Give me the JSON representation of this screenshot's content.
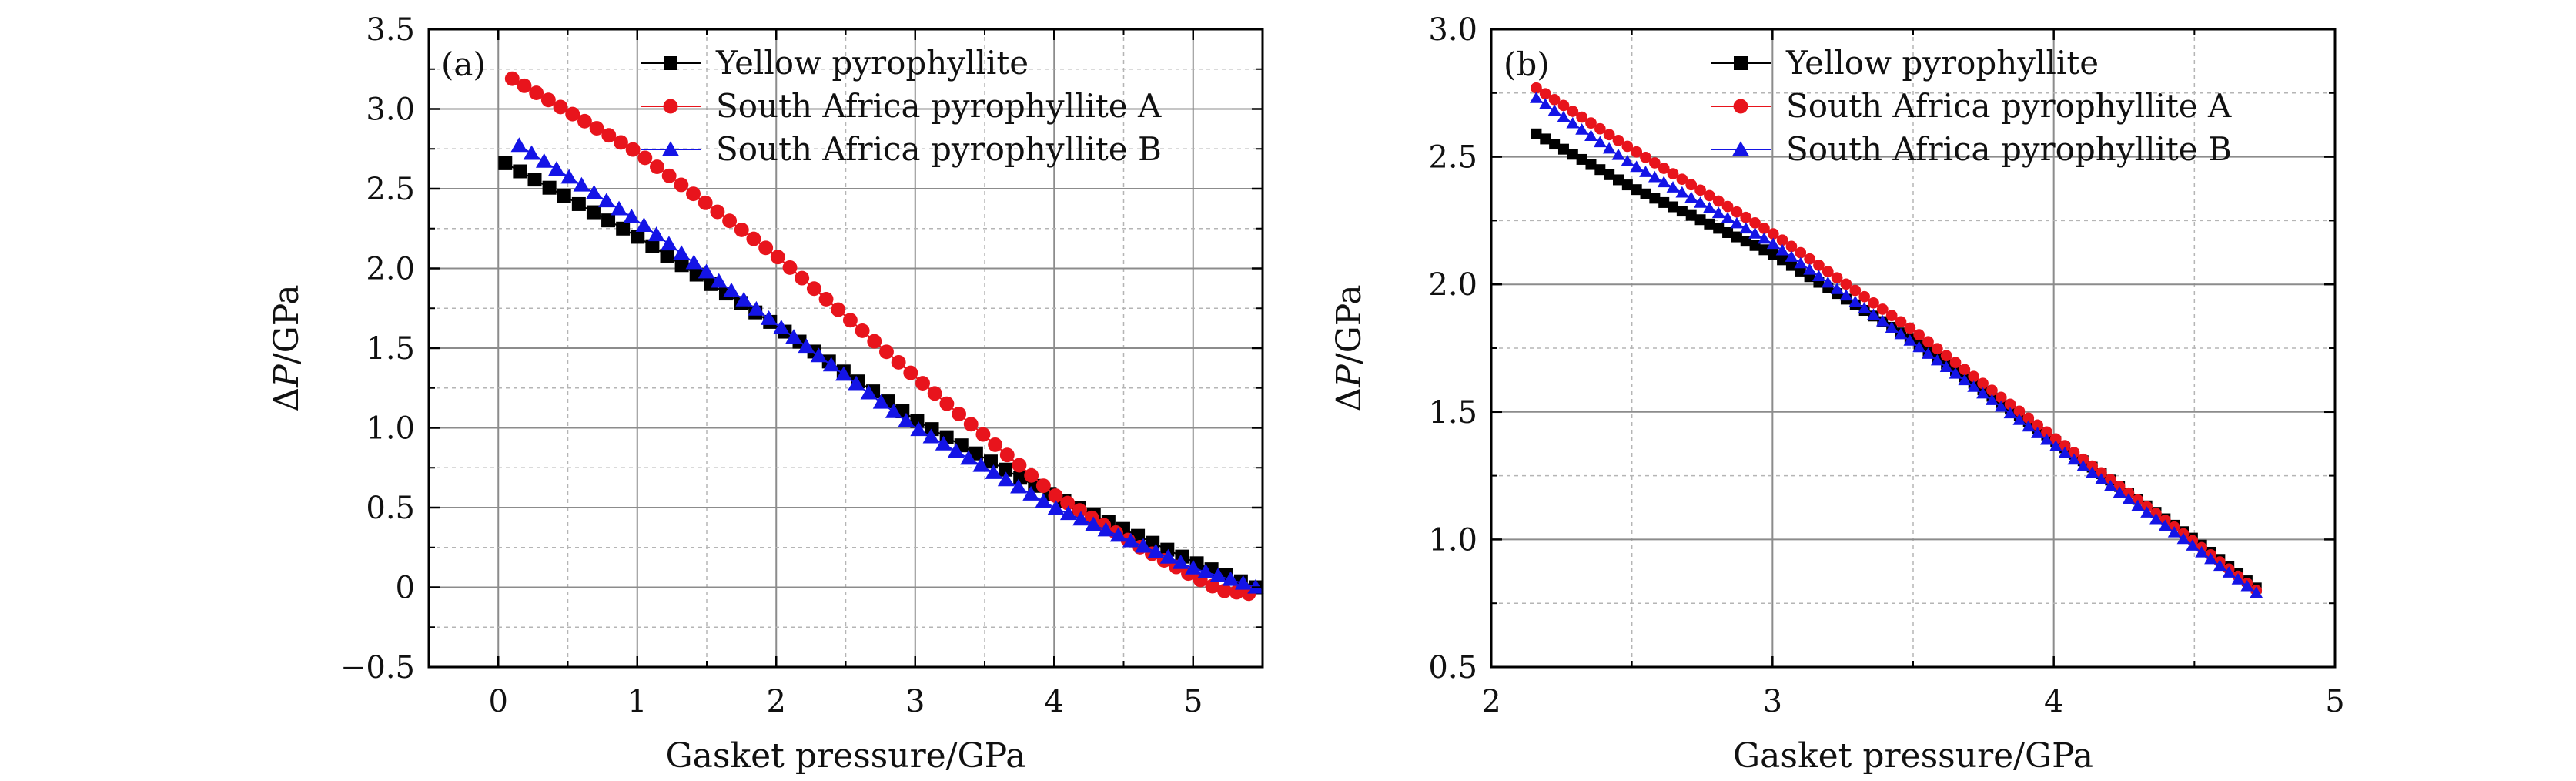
{
  "chart_data": [
    {
      "type": "line",
      "panel_label": "(a)",
      "xlabel": "Gasket pressure/GPa",
      "ylabel_main": "Δ",
      "ylabel_italic": "P",
      "ylabel_tail": "/GPa",
      "xlim": [
        -0.5,
        5.5
      ],
      "ylim": [
        -0.5,
        3.5
      ],
      "x_ticks": [
        0,
        1,
        2,
        3,
        4,
        5
      ],
      "x_tick_labels": [
        "0",
        "1",
        "2",
        "3",
        "4",
        "5"
      ],
      "y_ticks": [
        -0.5,
        0,
        0.5,
        1.0,
        1.5,
        2.0,
        2.5,
        3.0,
        3.5
      ],
      "y_tick_labels": [
        "−0.5",
        "0",
        "0.5",
        "1.0",
        "1.5",
        "2.0",
        "2.5",
        "3.0",
        "3.5"
      ],
      "grid": true,
      "legend_position": "top-right",
      "series": [
        {
          "name": "Yellow pyrophyllite",
          "color": "#000000",
          "marker": "square",
          "x_start": 0.05,
          "x_end": 5.45,
          "points": 52,
          "curve": [
            [
              0.05,
              2.66
            ],
            [
              1.0,
              2.2
            ],
            [
              2.0,
              1.64
            ],
            [
              3.0,
              1.05
            ],
            [
              4.0,
              0.57
            ],
            [
              5.0,
              0.16
            ],
            [
              5.45,
              0.0
            ]
          ]
        },
        {
          "name": "South Africa pyrophyllite A",
          "color": "#e8141c",
          "marker": "circle",
          "x_start": 0.1,
          "x_end": 5.4,
          "points": 62,
          "curve": [
            [
              0.1,
              3.19
            ],
            [
              1.0,
              2.73
            ],
            [
              2.0,
              2.08
            ],
            [
              3.0,
              1.32
            ],
            [
              4.0,
              0.58
            ],
            [
              4.6,
              0.26
            ],
            [
              5.0,
              0.07
            ],
            [
              5.2,
              -0.02
            ],
            [
              5.4,
              -0.04
            ]
          ]
        },
        {
          "name": "South Africa pyrophyllite B",
          "color": "#1414e6",
          "marker": "triangle",
          "x_start": 0.15,
          "x_end": 5.45,
          "points": 60,
          "curve": [
            [
              0.15,
              2.77
            ],
            [
              1.0,
              2.3
            ],
            [
              2.0,
              1.65
            ],
            [
              3.0,
              1.0
            ],
            [
              4.0,
              0.5
            ],
            [
              5.0,
              0.12
            ],
            [
              5.45,
              0.0
            ]
          ]
        }
      ]
    },
    {
      "type": "line",
      "panel_label": "(b)",
      "xlabel": "Gasket pressure/GPa",
      "ylabel_main": "Δ",
      "ylabel_italic": "P",
      "ylabel_tail": "/GPa",
      "xlim": [
        2.0,
        5.0
      ],
      "ylim": [
        0.5,
        3.0
      ],
      "x_ticks": [
        2,
        3,
        4,
        5
      ],
      "x_tick_labels": [
        "2",
        "3",
        "4",
        "5"
      ],
      "y_ticks": [
        0.5,
        1.0,
        1.5,
        2.0,
        2.5,
        3.0
      ],
      "y_tick_labels": [
        "0.5",
        "1.0",
        "1.5",
        "2.0",
        "2.5",
        "3.0"
      ],
      "grid": true,
      "legend_position": "top-right",
      "series": [
        {
          "name": "Yellow pyrophyllite",
          "color": "#000000",
          "marker": "square",
          "x_start": 2.16,
          "x_end": 4.72,
          "points": 80,
          "curve": [
            [
              2.16,
              2.59
            ],
            [
              2.5,
              2.38
            ],
            [
              3.0,
              2.12
            ],
            [
              3.5,
              1.78
            ],
            [
              4.0,
              1.39
            ],
            [
              4.5,
              1.0
            ],
            [
              4.72,
              0.81
            ]
          ]
        },
        {
          "name": "South Africa pyrophyllite A",
          "color": "#e8141c",
          "marker": "circle",
          "x_start": 2.16,
          "x_end": 4.72,
          "points": 80,
          "curve": [
            [
              2.16,
              2.77
            ],
            [
              2.5,
              2.53
            ],
            [
              3.0,
              2.2
            ],
            [
              3.5,
              1.82
            ],
            [
              4.0,
              1.4
            ],
            [
              4.5,
              0.99
            ],
            [
              4.72,
              0.8
            ]
          ]
        },
        {
          "name": "South Africa pyrophyllite B",
          "color": "#1414e6",
          "marker": "triangle",
          "x_start": 2.16,
          "x_end": 4.72,
          "points": 80,
          "curve": [
            [
              2.16,
              2.73
            ],
            [
              2.5,
              2.47
            ],
            [
              3.0,
              2.16
            ],
            [
              3.5,
              1.77
            ],
            [
              4.0,
              1.37
            ],
            [
              4.5,
              0.97
            ],
            [
              4.72,
              0.79
            ]
          ]
        }
      ]
    }
  ]
}
